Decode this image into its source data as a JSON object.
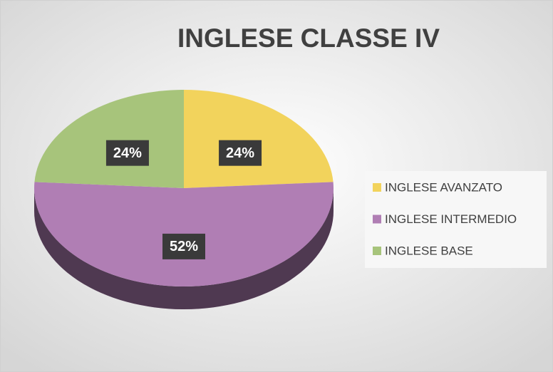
{
  "chart_data": {
    "type": "pie",
    "title": "INGLESE CLASSE IV",
    "categories": [
      "INGLESE AVANZATO",
      "INGLESE INTERMEDIO",
      "INGLESE BASE"
    ],
    "values": [
      24,
      52,
      24
    ],
    "value_labels": [
      "24%",
      "52%",
      "24%"
    ],
    "colors": [
      "#f2d35c",
      "#b07eb4",
      "#a7c47b"
    ],
    "legend": "right"
  }
}
